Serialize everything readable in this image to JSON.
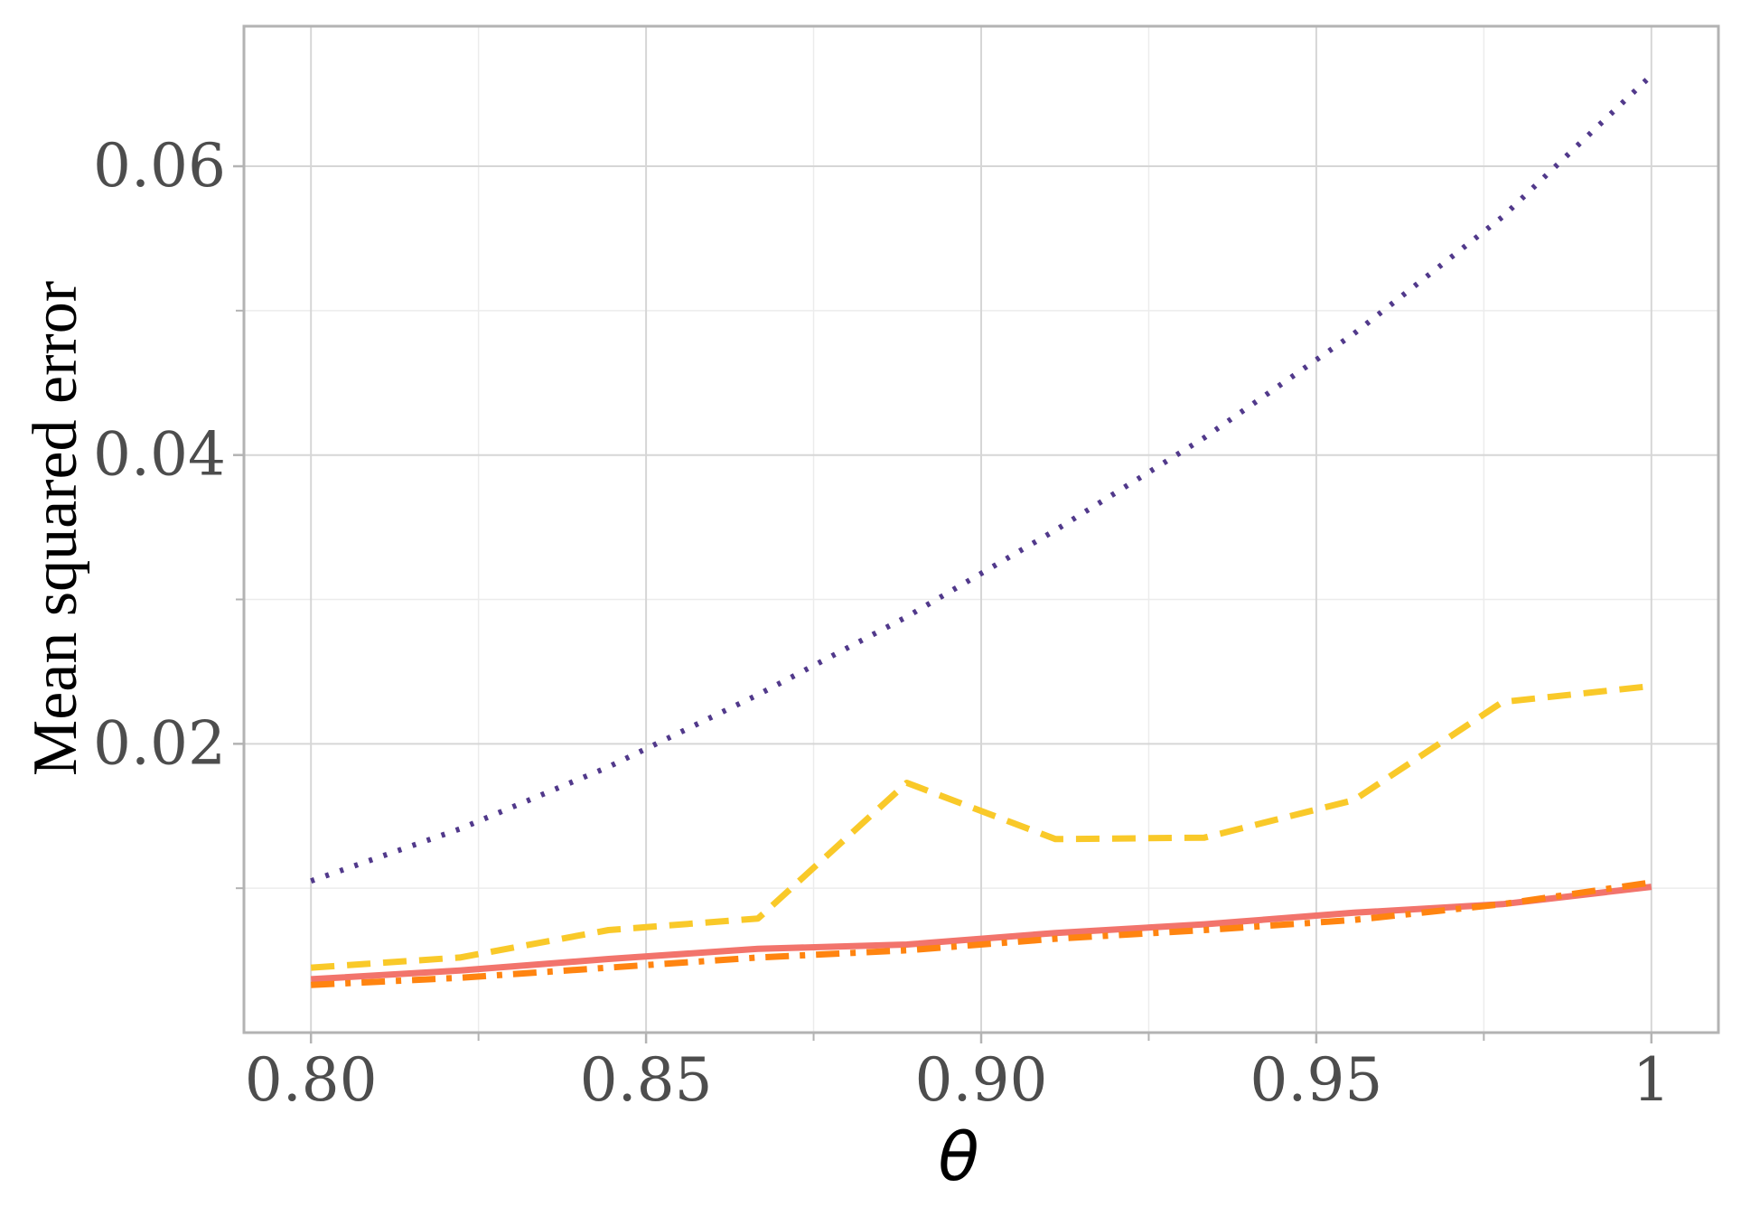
{
  "chart_data": {
    "type": "line",
    "xlabel": "θ",
    "ylabel": "Mean squared error",
    "xlim": [
      0.79,
      1.01
    ],
    "ylim": [
      0.0,
      0.0697
    ],
    "x_ticks": [
      0.8,
      0.85,
      0.9,
      0.95,
      1.0
    ],
    "x_tick_labels": [
      "0.80",
      "0.85",
      "0.90",
      "0.95",
      "1"
    ],
    "y_ticks": [
      0.02,
      0.04,
      0.06
    ],
    "y_tick_labels": [
      "0.02",
      "0.04",
      "0.06"
    ],
    "grid": true,
    "legend": "none",
    "x": [
      0.8,
      0.8222,
      0.8444,
      0.8667,
      0.8889,
      0.9111,
      0.9333,
      0.9556,
      0.9778,
      1.0
    ],
    "series": [
      {
        "color": "#51398b",
        "dash": "dotted",
        "values": [
          0.0105,
          0.0141,
          0.0184,
          0.0234,
          0.0288,
          0.0348,
          0.0412,
          0.0484,
          0.0565,
          0.0663
        ]
      },
      {
        "color": "#f9c929",
        "dash": "dashed",
        "values": [
          0.0045,
          0.0052,
          0.0071,
          0.0079,
          0.0173,
          0.0134,
          0.0135,
          0.0161,
          0.0229,
          0.024
        ]
      },
      {
        "color": "#f2746c",
        "dash": "solid",
        "values": [
          0.0037,
          0.0043,
          0.0051,
          0.0058,
          0.0061,
          0.0069,
          0.0075,
          0.0083,
          0.0089,
          0.0101
        ]
      },
      {
        "color": "#ff8410",
        "dash": "dashdot",
        "values": [
          0.0033,
          0.0038,
          0.0045,
          0.0052,
          0.0057,
          0.0065,
          0.0071,
          0.0078,
          0.0089,
          0.0104
        ]
      }
    ]
  }
}
